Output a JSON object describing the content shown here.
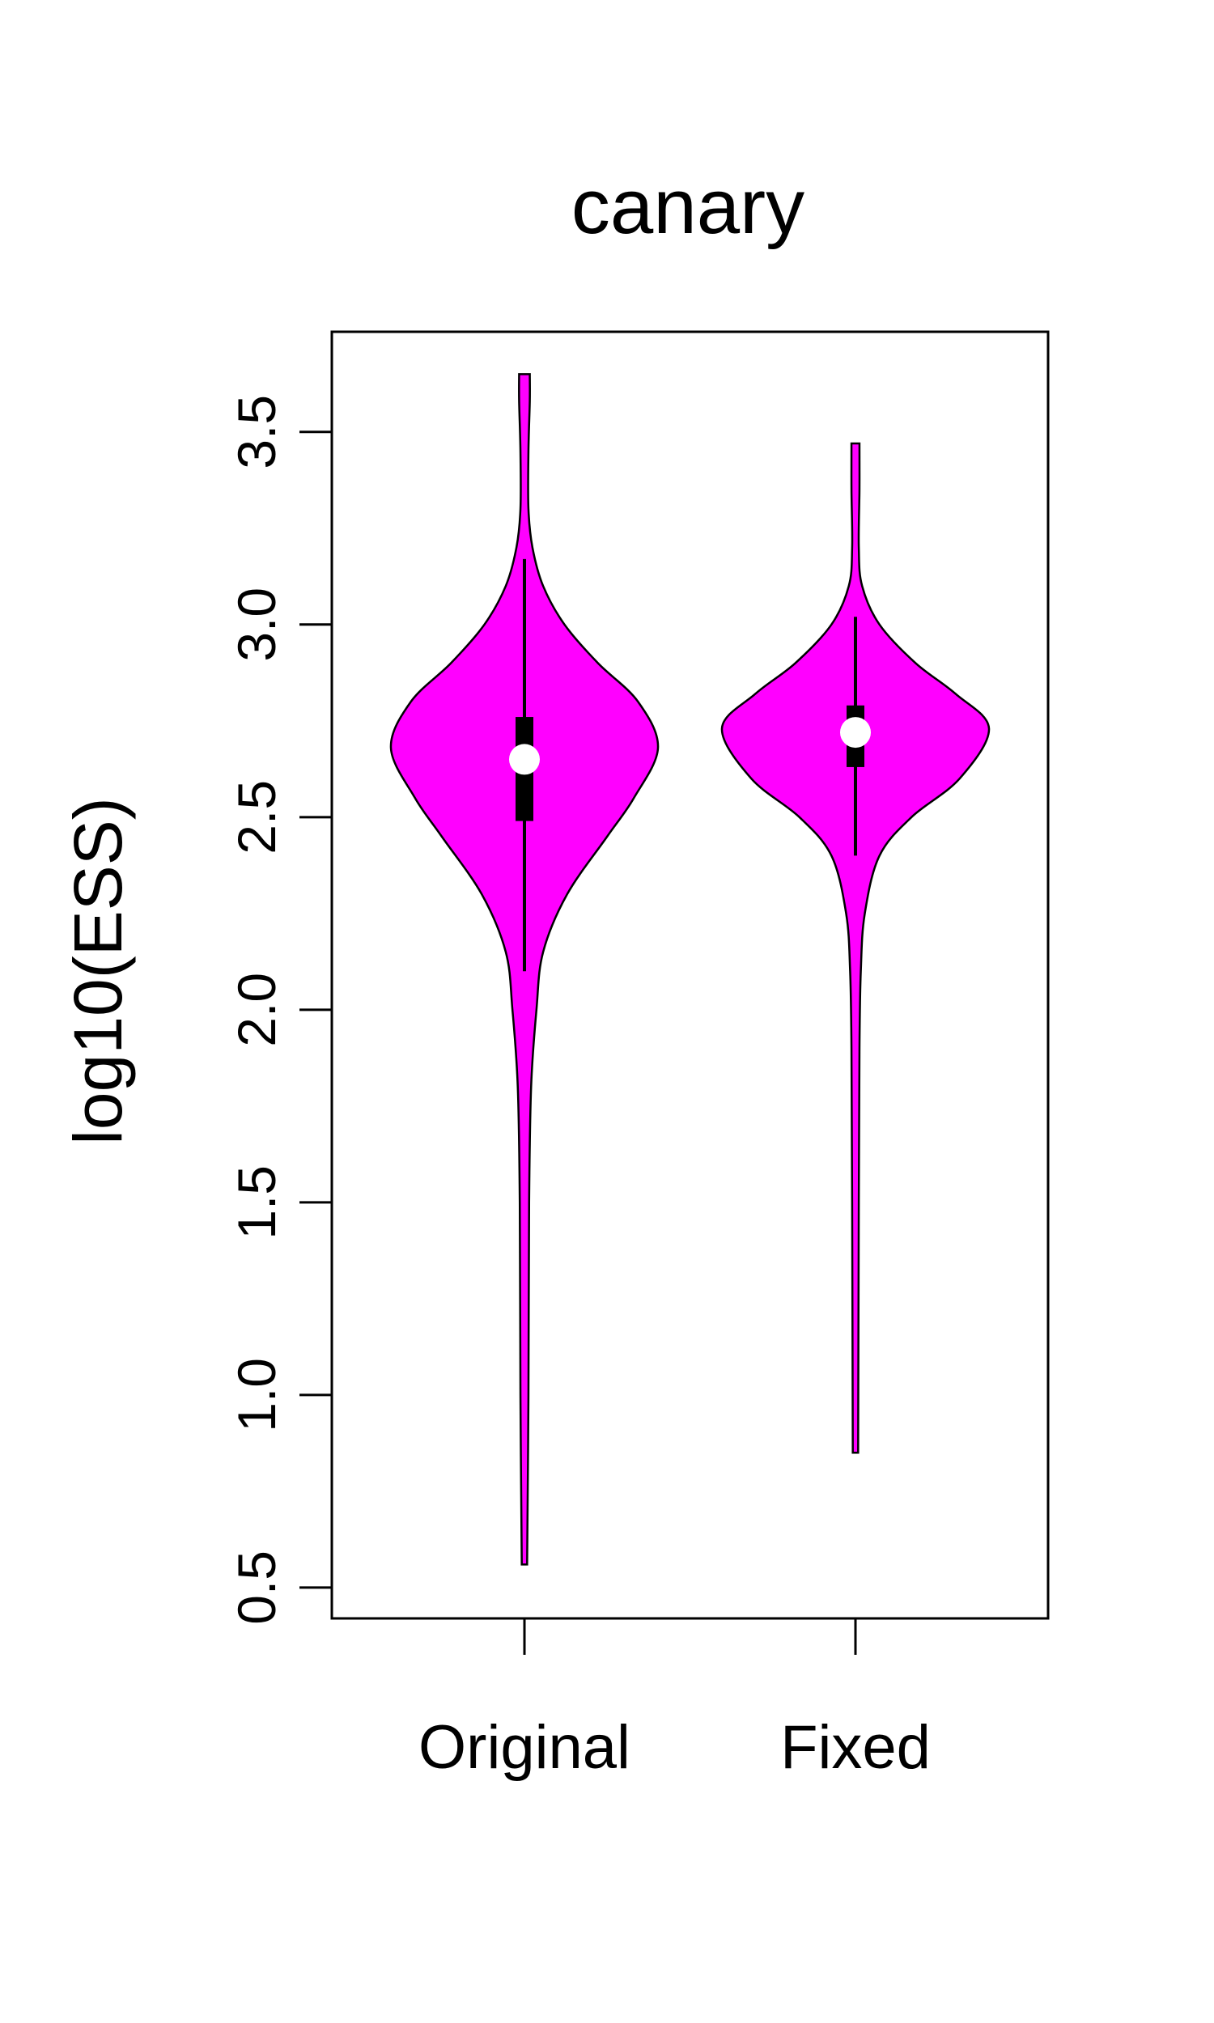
{
  "chart_data": {
    "type": "violin",
    "title": "canary",
    "ylabel": "log10(ESS)",
    "xlabel": "",
    "ylim": [
      0.42,
      3.76
    ],
    "yticks": [
      0.5,
      1.0,
      1.5,
      2.0,
      2.5,
      3.0,
      3.5
    ],
    "ytick_labels": [
      "0.5",
      "1.0",
      "1.5",
      "2.0",
      "2.5",
      "3.0",
      "3.5"
    ],
    "categories": [
      "Original",
      "Fixed"
    ],
    "fill_color": "#ff00ff",
    "median_color": "#ffffff",
    "grid": false,
    "legend": "none",
    "series": [
      {
        "category": "Original",
        "min": 0.56,
        "q1": 2.49,
        "median": 2.65,
        "q3": 2.76,
        "max": 3.65,
        "whisker_low": 2.1,
        "whisker_high": 3.17,
        "density_profile": [
          [
            0.56,
            0.02
          ],
          [
            1.0,
            0.03
          ],
          [
            1.5,
            0.035
          ],
          [
            1.8,
            0.05
          ],
          [
            2.0,
            0.09
          ],
          [
            2.15,
            0.14
          ],
          [
            2.3,
            0.32
          ],
          [
            2.45,
            0.62
          ],
          [
            2.55,
            0.82
          ],
          [
            2.68,
            1.0
          ],
          [
            2.8,
            0.85
          ],
          [
            2.9,
            0.55
          ],
          [
            3.0,
            0.3
          ],
          [
            3.1,
            0.14
          ],
          [
            3.2,
            0.06
          ],
          [
            3.3,
            0.03
          ],
          [
            3.45,
            0.03
          ],
          [
            3.58,
            0.04
          ],
          [
            3.65,
            0.04
          ]
        ]
      },
      {
        "category": "Fixed",
        "min": 0.85,
        "q1": 2.63,
        "median": 2.72,
        "q3": 2.79,
        "max": 3.47,
        "whisker_low": 2.4,
        "whisker_high": 3.02,
        "density_profile": [
          [
            0.85,
            0.02
          ],
          [
            1.5,
            0.025
          ],
          [
            1.9,
            0.03
          ],
          [
            2.1,
            0.04
          ],
          [
            2.25,
            0.07
          ],
          [
            2.4,
            0.18
          ],
          [
            2.5,
            0.42
          ],
          [
            2.6,
            0.78
          ],
          [
            2.73,
            1.0
          ],
          [
            2.82,
            0.75
          ],
          [
            2.9,
            0.45
          ],
          [
            3.0,
            0.18
          ],
          [
            3.1,
            0.05
          ],
          [
            3.2,
            0.025
          ],
          [
            3.35,
            0.03
          ],
          [
            3.47,
            0.03
          ]
        ]
      }
    ]
  }
}
